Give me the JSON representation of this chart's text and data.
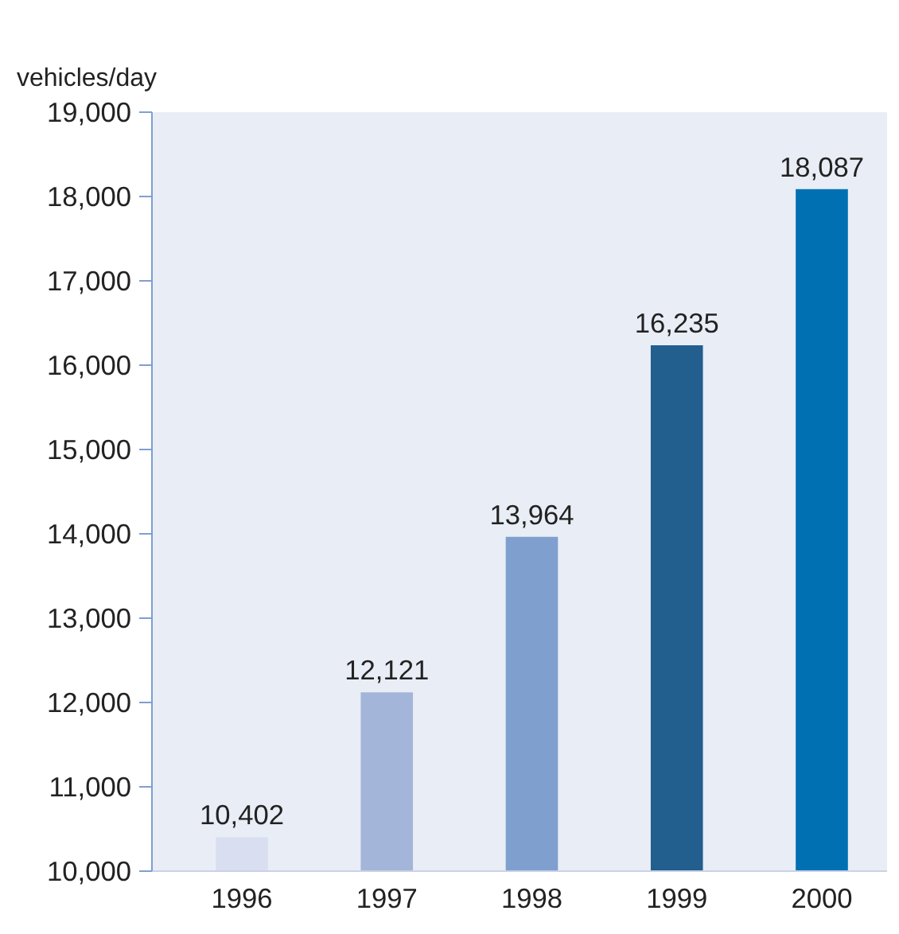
{
  "chart_data": {
    "type": "bar",
    "ylabel": "vehicles/day",
    "categories": [
      "1996",
      "1997",
      "1998",
      "1999",
      "2000"
    ],
    "values": [
      10402,
      12121,
      13964,
      16235,
      18087
    ],
    "colors": [
      "#d9dff0",
      "#a3b5d8",
      "#7f9fcf",
      "#225e8e",
      "#0070b3"
    ],
    "ylim": [
      10000,
      19000
    ],
    "yticks": [
      {
        "value": 10000,
        "label": "10,000"
      },
      {
        "value": 11000,
        "label": "11,000"
      },
      {
        "value": 12000,
        "label": "12,000"
      },
      {
        "value": 13000,
        "label": "13,000"
      },
      {
        "value": 14000,
        "label": "14,000"
      },
      {
        "value": 15000,
        "label": "15,000"
      },
      {
        "value": 16000,
        "label": "16,000"
      },
      {
        "value": 17000,
        "label": "17,000"
      },
      {
        "value": 18000,
        "label": "18,000"
      },
      {
        "value": 19000,
        "label": "19,000"
      }
    ],
    "value_labels": [
      "10,402",
      "12,121",
      "13,964",
      "16,235",
      "18,087"
    ],
    "grid": false
  }
}
